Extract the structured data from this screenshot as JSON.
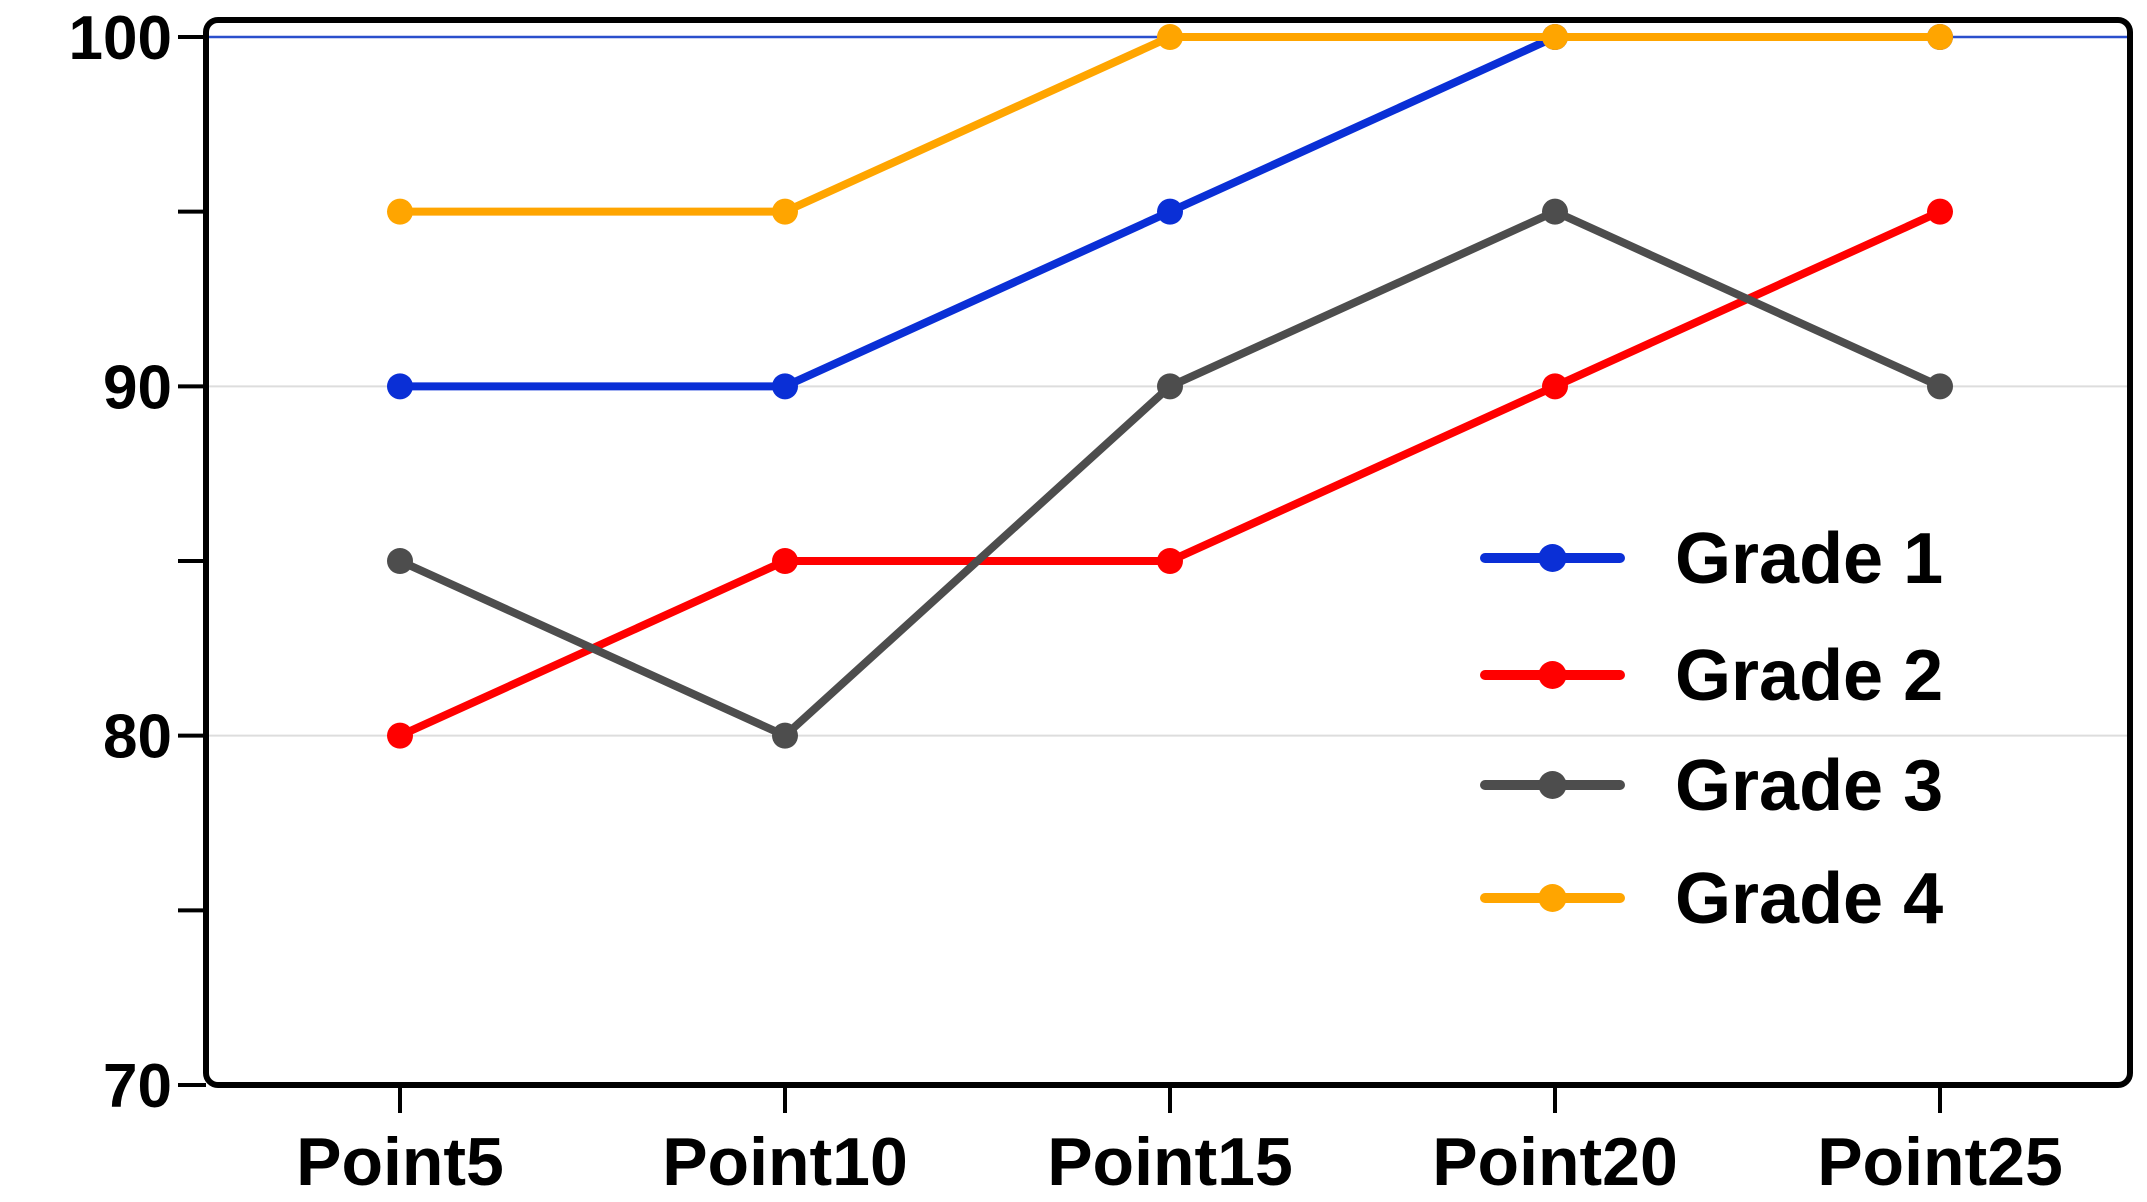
{
  "chart_data": {
    "type": "line",
    "categories": [
      "Point5",
      "Point10",
      "Point15",
      "Point20",
      "Point25"
    ],
    "series": [
      {
        "name": "Grade 1",
        "color": "#0a2fd6",
        "values": [
          90,
          90,
          95,
          100,
          100
        ]
      },
      {
        "name": "Grade 2",
        "color": "#ff0000",
        "values": [
          80,
          85,
          85,
          90,
          95
        ]
      },
      {
        "name": "Grade 3",
        "color": "#4d4d4d",
        "values": [
          85,
          80,
          90,
          95,
          90
        ]
      },
      {
        "name": "Grade 4",
        "color": "#ffa500",
        "values": [
          95,
          95,
          100,
          100,
          100
        ]
      }
    ],
    "ylim": [
      70,
      100
    ],
    "yticks_labeled": [
      70,
      80,
      90,
      100
    ],
    "yticks_minor": [
      75,
      85,
      95
    ],
    "grid": true,
    "grid_color": "#dddddd",
    "top_line_color": "#2a4fcc",
    "legend_position": "right"
  }
}
